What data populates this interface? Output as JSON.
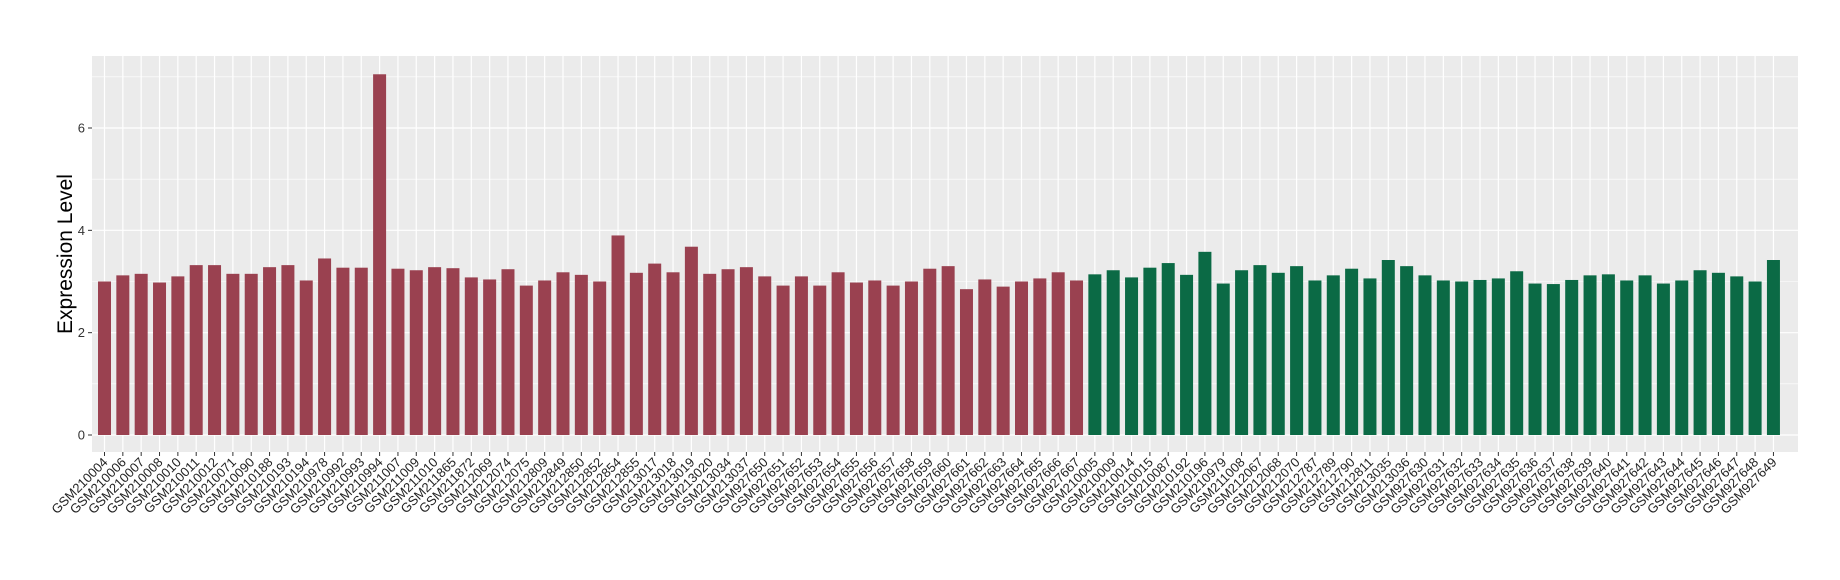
{
  "chart_data": {
    "type": "bar",
    "xlabel": "",
    "ylabel": "Expression Level",
    "ylim": [
      0,
      7.4
    ],
    "yticks": [
      0,
      2,
      4,
      6
    ],
    "grid": true,
    "legend": "none",
    "colors": {
      "group1": "#9a4150",
      "group2": "#0b6a45",
      "panel": "#ebebeb",
      "grid": "#ffffff"
    },
    "categories": [
      "GSM210004",
      "GSM210006",
      "GSM210007",
      "GSM210008",
      "GSM210010",
      "GSM210011",
      "GSM210012",
      "GSM210071",
      "GSM210090",
      "GSM210188",
      "GSM210193",
      "GSM210194",
      "GSM210978",
      "GSM210992",
      "GSM210993",
      "GSM210994",
      "GSM211007",
      "GSM211009",
      "GSM211010",
      "GSM211865",
      "GSM211872",
      "GSM212069",
      "GSM212074",
      "GSM212075",
      "GSM212809",
      "GSM212849",
      "GSM212850",
      "GSM212852",
      "GSM212854",
      "GSM212855",
      "GSM213017",
      "GSM213018",
      "GSM213019",
      "GSM213020",
      "GSM213034",
      "GSM213037",
      "GSM927650",
      "GSM927651",
      "GSM927652",
      "GSM927653",
      "GSM927654",
      "GSM927655",
      "GSM927656",
      "GSM927657",
      "GSM927658",
      "GSM927659",
      "GSM927660",
      "GSM927661",
      "GSM927662",
      "GSM927663",
      "GSM927664",
      "GSM927665",
      "GSM927666",
      "GSM927667",
      "GSM210005",
      "GSM210009",
      "GSM210014",
      "GSM210015",
      "GSM210087",
      "GSM210192",
      "GSM210196",
      "GSM210979",
      "GSM211008",
      "GSM212067",
      "GSM212068",
      "GSM212070",
      "GSM212787",
      "GSM212789",
      "GSM212790",
      "GSM212811",
      "GSM213035",
      "GSM213036",
      "GSM927630",
      "GSM927631",
      "GSM927632",
      "GSM927633",
      "GSM927634",
      "GSM927635",
      "GSM927636",
      "GSM927637",
      "GSM927638",
      "GSM927639",
      "GSM927640",
      "GSM927641",
      "GSM927642",
      "GSM927643",
      "GSM927644",
      "GSM927645",
      "GSM927646",
      "GSM927647",
      "GSM927648",
      "GSM927649"
    ],
    "values": [
      3.0,
      3.12,
      3.15,
      2.98,
      3.1,
      3.32,
      3.32,
      3.15,
      3.15,
      3.28,
      3.32,
      3.02,
      3.45,
      3.27,
      3.27,
      7.05,
      3.25,
      3.22,
      3.28,
      3.26,
      3.08,
      3.04,
      3.24,
      2.92,
      3.02,
      3.18,
      3.13,
      3.0,
      3.9,
      3.17,
      3.35,
      3.18,
      3.68,
      3.15,
      3.24,
      3.28,
      3.1,
      2.92,
      3.1,
      2.92,
      3.18,
      2.98,
      3.02,
      2.92,
      3.0,
      3.25,
      3.3,
      2.85,
      3.04,
      2.9,
      3.0,
      3.06,
      3.18,
      3.02,
      3.14,
      3.22,
      3.08,
      3.27,
      3.36,
      3.13,
      3.58,
      2.96,
      3.22,
      3.32,
      3.17,
      3.3,
      3.02,
      3.12,
      3.25,
      3.06,
      3.42,
      3.3,
      3.12,
      3.02,
      3.0,
      3.03,
      3.06,
      3.2,
      2.96,
      2.95,
      3.03,
      3.12,
      3.14,
      3.02,
      3.12,
      2.96,
      3.02,
      3.22,
      3.17,
      3.1,
      3.0,
      3.42
    ],
    "groups": [
      "group1",
      "group1",
      "group1",
      "group1",
      "group1",
      "group1",
      "group1",
      "group1",
      "group1",
      "group1",
      "group1",
      "group1",
      "group1",
      "group1",
      "group1",
      "group1",
      "group1",
      "group1",
      "group1",
      "group1",
      "group1",
      "group1",
      "group1",
      "group1",
      "group1",
      "group1",
      "group1",
      "group1",
      "group1",
      "group1",
      "group1",
      "group1",
      "group1",
      "group1",
      "group1",
      "group1",
      "group1",
      "group1",
      "group1",
      "group1",
      "group1",
      "group1",
      "group1",
      "group1",
      "group1",
      "group1",
      "group1",
      "group1",
      "group1",
      "group1",
      "group1",
      "group1",
      "group1",
      "group1",
      "group2",
      "group2",
      "group2",
      "group2",
      "group2",
      "group2",
      "group2",
      "group2",
      "group2",
      "group2",
      "group2",
      "group2",
      "group2",
      "group2",
      "group2",
      "group2",
      "group2",
      "group2",
      "group2",
      "group2",
      "group2",
      "group2",
      "group2",
      "group2",
      "group2",
      "group2",
      "group2",
      "group2",
      "group2",
      "group2",
      "group2",
      "group2",
      "group2",
      "group2",
      "group2",
      "group2",
      "group2",
      "group2"
    ]
  }
}
